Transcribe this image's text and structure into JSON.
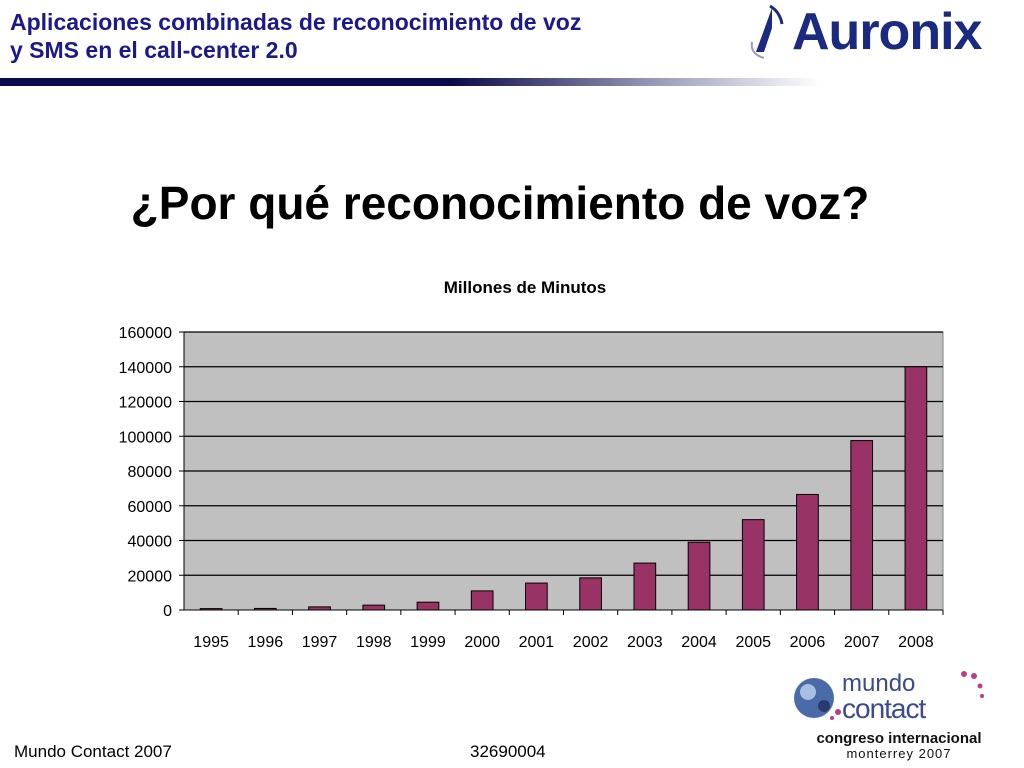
{
  "header": {
    "title_line1": "Aplicaciones combinadas de reconocimiento de voz",
    "title_line2": "y SMS en el call-center 2.0",
    "logo_text": "Auronix"
  },
  "slide": {
    "title": "¿Por qué reconocimiento de voz?"
  },
  "chart_data": {
    "type": "bar",
    "title": "Millones de Minutos",
    "xlabel": "",
    "ylabel": "",
    "categories": [
      "1995",
      "1996",
      "1997",
      "1998",
      "1999",
      "2000",
      "2001",
      "2002",
      "2003",
      "2004",
      "2005",
      "2006",
      "2007",
      "2008"
    ],
    "values": [
      800,
      900,
      1800,
      2800,
      4500,
      11000,
      15500,
      18500,
      27000,
      39000,
      52000,
      66500,
      97500,
      140000
    ],
    "ylim": [
      0,
      160000
    ],
    "yticks": [
      "0",
      "20000",
      "40000",
      "60000",
      "80000",
      "100000",
      "120000",
      "140000",
      "160000"
    ],
    "grid": true,
    "legend": "none",
    "colors": {
      "bar": "#993366",
      "plot_bg": "#c0c0c0",
      "grid": "#000000"
    }
  },
  "footer": {
    "left": "Mundo Contact 2007",
    "center": "32690004"
  },
  "mundo_contact_logo": {
    "word1": "mundo",
    "word2": "contact",
    "tagline1": "congreso internacional",
    "tagline2": "monterrey 2007"
  }
}
